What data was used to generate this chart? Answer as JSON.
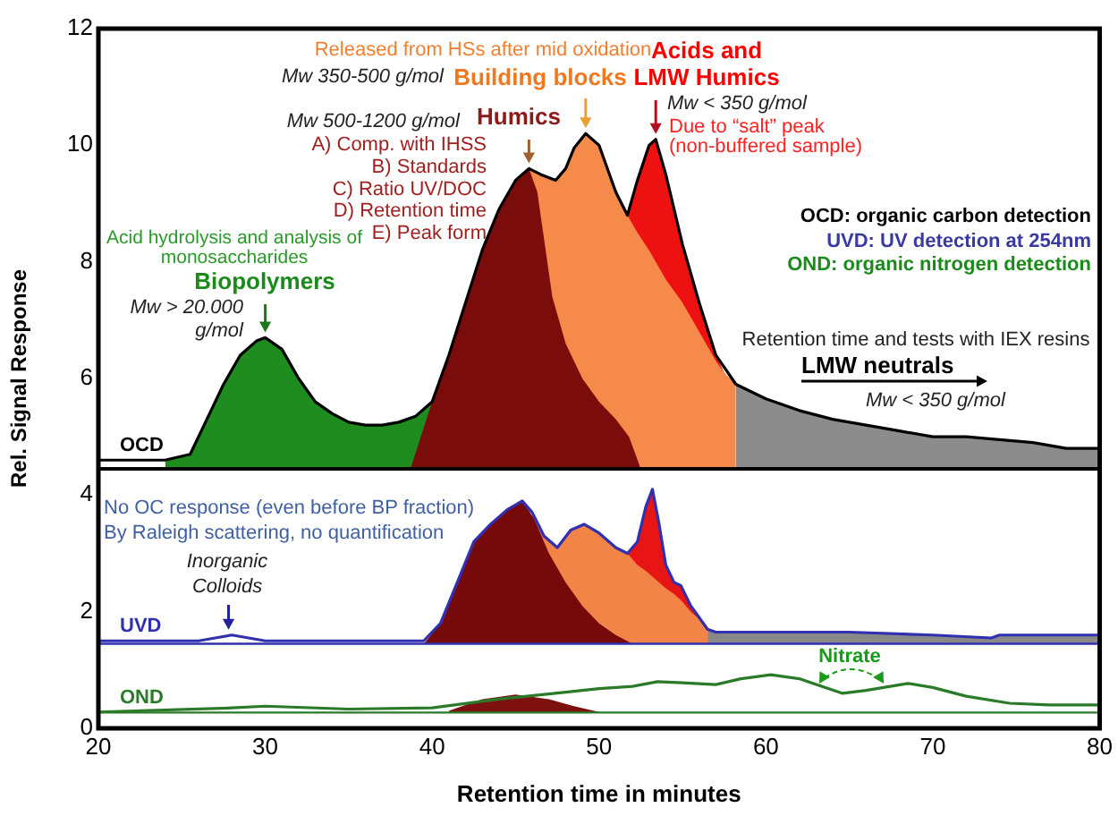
{
  "chart_data": {
    "type": "line",
    "xlabel": "Retention time in minutes",
    "ylabel": "Rel. Signal Response",
    "xlim": [
      20,
      80
    ],
    "xticks": [
      20,
      30,
      40,
      50,
      60,
      70,
      80
    ],
    "ylim": [
      0,
      12
    ],
    "yticks": [
      0,
      2,
      4,
      6,
      8,
      10,
      12
    ],
    "ref_lines": [
      {
        "axis": "y",
        "value": 4.45,
        "color": "#000000"
      },
      {
        "axis": "y",
        "value": 1.45,
        "color": "#3030b0"
      },
      {
        "axis": "y",
        "value": 0.27,
        "color": "#2a7a2a"
      }
    ],
    "series": [
      {
        "type": "area",
        "color": "#1e8c1e",
        "x": [
          24,
          25.5,
          26.5,
          27.5,
          28.5,
          29.5,
          30,
          31,
          32,
          33,
          34,
          35,
          36,
          37,
          38,
          39,
          40,
          41
        ],
        "values": [
          4.6,
          4.7,
          5.3,
          5.9,
          6.4,
          6.65,
          6.7,
          6.5,
          6.0,
          5.6,
          5.4,
          5.25,
          5.2,
          5.2,
          5.25,
          5.35,
          5.6,
          6.4
        ]
      },
      {
        "type": "area",
        "color": "#ee1111",
        "x": [
          51.7,
          52.3,
          53,
          53.4,
          54,
          55,
          56,
          57,
          57.5
        ],
        "values": [
          8.8,
          9.4,
          10.0,
          10.1,
          9.5,
          8.3,
          7.3,
          6.4,
          6.1
        ]
      },
      {
        "type": "area",
        "color": "#f58a4a",
        "x": [
          45.8,
          46.5,
          47.4,
          48,
          48.5,
          49.2,
          50,
          51,
          51.7,
          52.3,
          53,
          53.4,
          54,
          55,
          56,
          57,
          57.5,
          58.2
        ],
        "values": [
          9.6,
          9.5,
          9.4,
          9.6,
          9.95,
          10.2,
          10.0,
          9.2,
          8.8,
          8.5,
          8.2,
          8.0,
          7.7,
          7.3,
          6.8,
          6.3,
          6.1,
          5.9
        ]
      },
      {
        "type": "area",
        "color": "#8c8c8c",
        "x": [
          58.2,
          60,
          62,
          64,
          66,
          68,
          70,
          72,
          74,
          76,
          78,
          80
        ],
        "values": [
          5.9,
          5.65,
          5.45,
          5.3,
          5.2,
          5.1,
          5.0,
          5.0,
          4.95,
          4.9,
          4.8,
          4.8
        ]
      },
      {
        "type": "area",
        "color": "#7a0c0c",
        "x": [
          38.7,
          40,
          41,
          42,
          43,
          44,
          45,
          45.8,
          46.3,
          47.2,
          48,
          49,
          50,
          51,
          51.8,
          52.5
        ],
        "values": [
          4.45,
          5.6,
          6.4,
          7.3,
          8.2,
          8.9,
          9.4,
          9.6,
          9.2,
          7.4,
          6.6,
          6.0,
          5.6,
          5.3,
          5.0,
          4.45
        ]
      },
      {
        "type": "area",
        "color": "#e81515",
        "x": [
          51.7,
          52.3,
          52.8,
          53.2,
          53.6,
          54,
          54.5,
          54.9,
          55.5,
          56.3
        ],
        "values": [
          3.0,
          3.2,
          3.8,
          4.1,
          3.5,
          2.8,
          2.5,
          2.45,
          2.1,
          1.8
        ]
      },
      {
        "type": "area",
        "color": "#f28448",
        "x": [
          46,
          46.7,
          47.5,
          48.3,
          49.1,
          50,
          51,
          51.7,
          52.3,
          52.8,
          53.2,
          53.6,
          54,
          54.5,
          54.9,
          55.5,
          56.3,
          56.5
        ],
        "values": [
          3.7,
          3.3,
          3.1,
          3.4,
          3.5,
          3.35,
          3.1,
          3.0,
          2.8,
          2.7,
          2.6,
          2.5,
          2.4,
          2.3,
          2.2,
          2.0,
          1.8,
          1.7
        ]
      },
      {
        "type": "area",
        "color": "#888888",
        "x": [
          56.5,
          57,
          60,
          65,
          70,
          73.5,
          74,
          80
        ],
        "values": [
          1.7,
          1.65,
          1.65,
          1.65,
          1.6,
          1.55,
          1.6,
          1.6
        ]
      },
      {
        "type": "area",
        "color": "#760a0a",
        "x": [
          39.5,
          40.5,
          41.5,
          42.5,
          43.5,
          44.5,
          45.4,
          46.1,
          47,
          48,
          49,
          50,
          51,
          52
        ],
        "values": [
          1.45,
          1.8,
          2.5,
          3.2,
          3.5,
          3.75,
          3.9,
          3.6,
          3.0,
          2.5,
          2.1,
          1.8,
          1.6,
          1.45
        ]
      },
      {
        "type": "area",
        "color": "#7e1010",
        "x": [
          41,
          43,
          45,
          47,
          48.5,
          50
        ],
        "values": [
          0.3,
          0.5,
          0.58,
          0.5,
          0.38,
          0.28
        ]
      },
      {
        "type": "line",
        "name": "OCD",
        "color": "#000000",
        "x": [
          20,
          24,
          25.5,
          26.5,
          27.5,
          28.5,
          29.5,
          30,
          31,
          32,
          33,
          34,
          35,
          36,
          37,
          38,
          39,
          40,
          41,
          42,
          43,
          44,
          45,
          45.8,
          46.5,
          47.4,
          48,
          48.5,
          49.2,
          50,
          51,
          51.7,
          52.3,
          53,
          53.4,
          54,
          55,
          56,
          57,
          58.2,
          60,
          62,
          64,
          66,
          68,
          70,
          72,
          74,
          76,
          78,
          80
        ],
        "values": [
          4.6,
          4.6,
          4.7,
          5.3,
          5.9,
          6.4,
          6.65,
          6.7,
          6.5,
          6.0,
          5.6,
          5.4,
          5.25,
          5.2,
          5.2,
          5.25,
          5.35,
          5.6,
          6.4,
          7.3,
          8.2,
          8.9,
          9.4,
          9.6,
          9.5,
          9.4,
          9.6,
          9.95,
          10.2,
          10.0,
          9.2,
          8.8,
          9.4,
          10.0,
          10.1,
          9.5,
          8.3,
          7.3,
          6.4,
          5.9,
          5.65,
          5.45,
          5.3,
          5.2,
          5.1,
          5.0,
          5.0,
          4.95,
          4.9,
          4.8,
          4.8
        ]
      },
      {
        "type": "line",
        "name": "UVD",
        "color": "#3030b0",
        "x": [
          20,
          26,
          27,
          28,
          29,
          30,
          39.5,
          40.5,
          41.5,
          42.5,
          43.5,
          44.5,
          45.4,
          46,
          46.7,
          47.5,
          48.3,
          49.1,
          50,
          51,
          51.7,
          52.3,
          52.8,
          53.2,
          53.6,
          54,
          54.5,
          54.9,
          55.5,
          56.5,
          57,
          60,
          65,
          70,
          73.5,
          74,
          80
        ],
        "values": [
          1.5,
          1.5,
          1.55,
          1.6,
          1.55,
          1.5,
          1.5,
          1.8,
          2.5,
          3.2,
          3.5,
          3.75,
          3.9,
          3.7,
          3.3,
          3.1,
          3.4,
          3.5,
          3.35,
          3.1,
          3.0,
          3.2,
          3.8,
          4.1,
          3.5,
          2.8,
          2.5,
          2.45,
          2.1,
          1.7,
          1.65,
          1.65,
          1.65,
          1.6,
          1.55,
          1.6,
          1.6
        ]
      },
      {
        "type": "line",
        "name": "OND",
        "color": "#2a7a2a",
        "x": [
          20,
          28,
          30,
          35,
          40,
          44,
          48,
          50,
          52,
          53.5,
          55,
          57,
          58.5,
          60.3,
          62,
          64.6,
          66,
          68.5,
          70,
          72,
          74.6,
          77,
          80
        ],
        "values": [
          0.28,
          0.35,
          0.38,
          0.33,
          0.35,
          0.5,
          0.62,
          0.68,
          0.72,
          0.8,
          0.78,
          0.75,
          0.85,
          0.92,
          0.85,
          0.6,
          0.65,
          0.77,
          0.7,
          0.55,
          0.43,
          0.4,
          0.4
        ]
      }
    ],
    "annotations": [
      "Released from HSs after mid oxidation",
      "Mw 350-500 g/mol",
      {
        "text": "Building blocks",
        "x": 49.2,
        "y": 10.2
      },
      {
        "text": "Acids and\nLMW Humics",
        "x": 53.4,
        "y": 10.1
      },
      "Mw < 350 g/mol",
      "Due to “salt” peak\n(non-buffered sample)",
      "Mw 500-1200 g/mol",
      {
        "text": "Humics",
        "x": 45.8,
        "y": 9.6
      },
      "A) Comp. with IHSS\nB) Standards\nC) Ratio UV/DOC\nD) Retention time\nE) Peak form",
      "Acid hydrolysis and analysis of\nmonosaccharides",
      {
        "text": "Biopolymers",
        "x": 30,
        "y": 6.7
      },
      "Mw > 20.000\ng/mol",
      "OCD: organic carbon detection",
      "UVD: UV detection at 254nm",
      "OND: organic nitrogen detection",
      "Retention time and tests with IEX resins",
      "LMW neutrals",
      "Mw < 350 g/mol",
      "No OC response (even before BP fraction)\nBy Raleigh scattering, no quantification",
      {
        "text": "Inorganic\nColloids",
        "x": 27.8,
        "y": 1.6
      },
      "Nitrate"
    ]
  }
}
